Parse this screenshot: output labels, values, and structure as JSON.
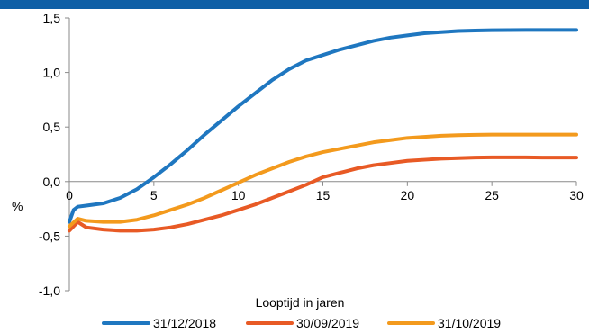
{
  "chart_data": {
    "type": "line",
    "title": "",
    "xlabel": "Looptijd in jaren",
    "ylabel": "%",
    "xlim": [
      0,
      30
    ],
    "ylim": [
      -1.0,
      1.5
    ],
    "x_ticks": [
      "0",
      "5",
      "10",
      "15",
      "20",
      "25",
      "30"
    ],
    "y_ticks": [
      "1,5",
      "1,0",
      "0,5",
      "0,0",
      "-0,5",
      "-1,0"
    ],
    "grid": false,
    "legend_position": "bottom",
    "colors": {
      "header": "#0f5fa6",
      "axis": "#8a8a8a"
    },
    "series": [
      {
        "name": "31/12/2018",
        "color": "#1f77c0",
        "x": [
          0,
          0.25,
          0.5,
          1,
          2,
          3,
          4,
          5,
          6,
          7,
          8,
          9,
          10,
          11,
          12,
          13,
          14,
          15,
          16,
          17,
          18,
          19,
          20,
          21,
          22,
          23,
          24,
          25,
          26,
          27,
          28,
          29,
          30
        ],
        "y": [
          -0.37,
          -0.26,
          -0.23,
          -0.22,
          -0.2,
          -0.15,
          -0.07,
          0.04,
          0.16,
          0.29,
          0.43,
          0.56,
          0.69,
          0.81,
          0.93,
          1.03,
          1.11,
          1.16,
          1.21,
          1.25,
          1.29,
          1.32,
          1.34,
          1.36,
          1.37,
          1.38,
          1.385,
          1.388,
          1.389,
          1.39,
          1.39,
          1.39,
          1.39
        ]
      },
      {
        "name": "30/09/2019",
        "color": "#e85a25",
        "x": [
          0,
          0.5,
          1,
          2,
          3,
          4,
          5,
          6,
          7,
          8,
          9,
          10,
          11,
          12,
          13,
          14,
          15,
          16,
          17,
          18,
          19,
          20,
          21,
          22,
          23,
          24,
          25,
          26,
          27,
          28,
          29,
          30
        ],
        "y": [
          -0.45,
          -0.37,
          -0.42,
          -0.44,
          -0.45,
          -0.45,
          -0.44,
          -0.42,
          -0.39,
          -0.35,
          -0.31,
          -0.26,
          -0.21,
          -0.15,
          -0.09,
          -0.03,
          0.04,
          0.08,
          0.12,
          0.15,
          0.17,
          0.19,
          0.2,
          0.21,
          0.215,
          0.22,
          0.222,
          0.222,
          0.222,
          0.22,
          0.22,
          0.22
        ]
      },
      {
        "name": "31/10/2019",
        "color": "#f39a1d",
        "x": [
          0,
          0.5,
          1,
          2,
          3,
          4,
          5,
          6,
          7,
          8,
          9,
          10,
          11,
          12,
          13,
          14,
          15,
          16,
          17,
          18,
          19,
          20,
          21,
          22,
          23,
          24,
          25,
          26,
          27,
          28,
          29,
          30
        ],
        "y": [
          -0.41,
          -0.34,
          -0.36,
          -0.37,
          -0.37,
          -0.35,
          -0.31,
          -0.26,
          -0.21,
          -0.15,
          -0.08,
          -0.01,
          0.06,
          0.12,
          0.18,
          0.23,
          0.27,
          0.3,
          0.33,
          0.36,
          0.38,
          0.4,
          0.41,
          0.42,
          0.425,
          0.428,
          0.43,
          0.43,
          0.43,
          0.43,
          0.43,
          0.43
        ]
      }
    ]
  }
}
